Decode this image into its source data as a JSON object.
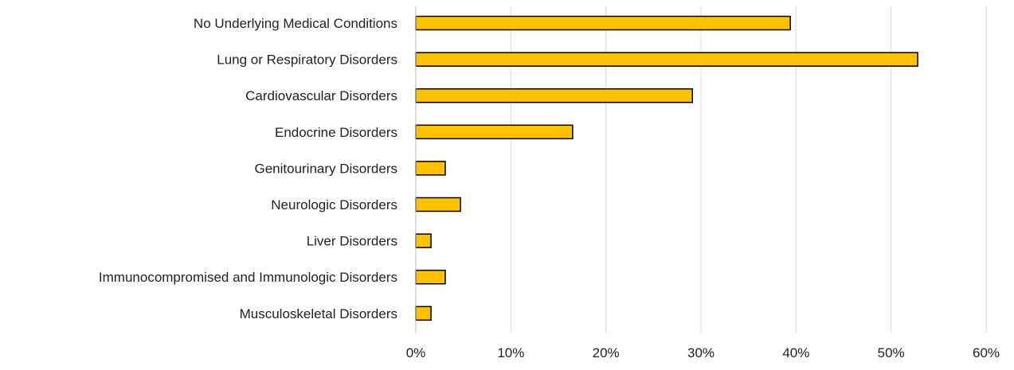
{
  "chart_data": {
    "type": "bar",
    "orientation": "horizontal",
    "categories": [
      "No Underlying Medical Conditions",
      "Lung or Respiratory Disorders",
      "Cardiovascular Disorders",
      "Endocrine Disorders",
      "Genitourinary Disorders",
      "Neurologic Disorders",
      "Liver Disorders",
      "Immunocompromised and Immunologic Disorders",
      "Musculoskeletal Disorders"
    ],
    "values": [
      39.4,
      52.8,
      29.1,
      16.5,
      3.1,
      4.7,
      1.6,
      3.1,
      1.6
    ],
    "xlim": [
      0,
      60
    ],
    "xticks": [
      0,
      10,
      20,
      30,
      40,
      50,
      60
    ],
    "xtick_labels": [
      "0%",
      "10%",
      "20%",
      "30%",
      "40%",
      "50%",
      "60%"
    ],
    "title": "",
    "xlabel": "",
    "ylabel": "",
    "grid": "vertical",
    "legend": "none",
    "bar_color": "#FFC000",
    "bar_edge_color": "#000000"
  }
}
